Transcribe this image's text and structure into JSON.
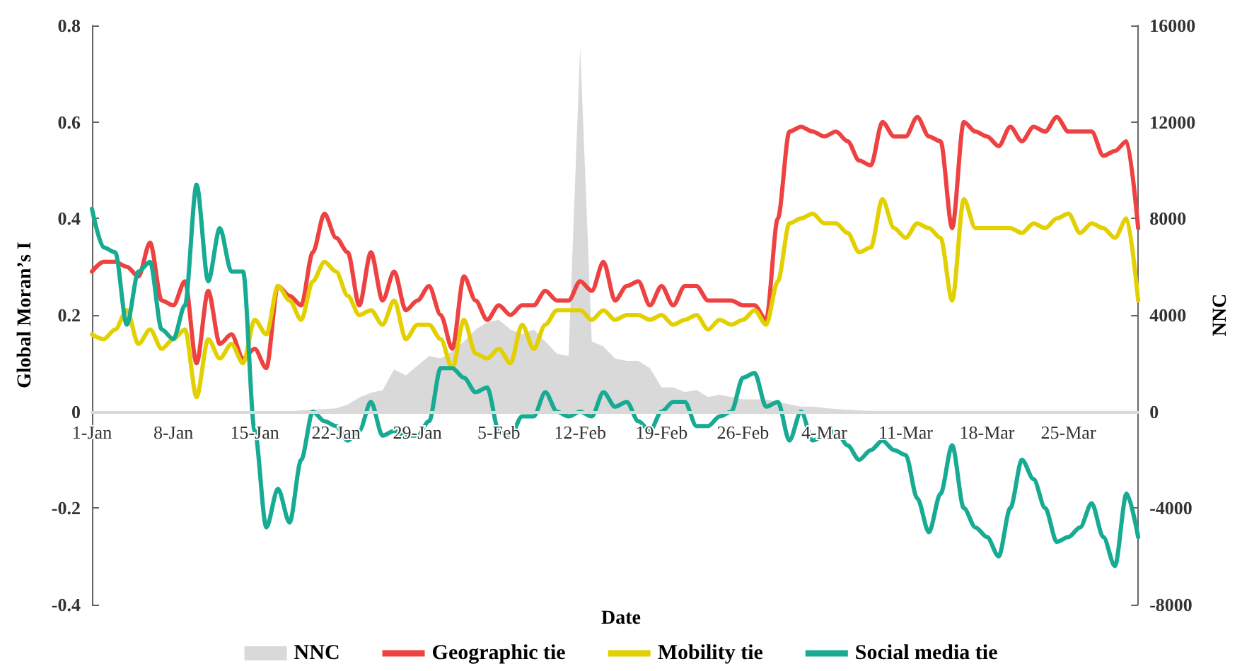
{
  "chart_data": {
    "type": "line",
    "xlabel": "Date",
    "ylabel": "Global Moran’s I",
    "y2label": "NNC",
    "x": [
      "--01-01",
      "--01-02",
      "--01-03",
      "--01-04",
      "--01-05",
      "--01-06",
      "--01-07",
      "--01-08",
      "--01-09",
      "--01-10",
      "--01-11",
      "--01-12",
      "--01-13",
      "--01-14",
      "--01-15",
      "--01-16",
      "--01-17",
      "--01-18",
      "--01-19",
      "--01-20",
      "--01-21",
      "--01-22",
      "--01-23",
      "--01-24",
      "--01-25",
      "--01-26",
      "--01-27",
      "--01-28",
      "--01-29",
      "--01-30",
      "--01-31",
      "--02-01",
      "--02-02",
      "--02-03",
      "--02-04",
      "--02-05",
      "--02-06",
      "--02-07",
      "--02-08",
      "--02-09",
      "--02-10",
      "--02-11",
      "--02-12",
      "--02-13",
      "--02-14",
      "--02-15",
      "--02-16",
      "--02-17",
      "--02-18",
      "--02-19",
      "--02-20",
      "--02-21",
      "--02-22",
      "--02-23",
      "--02-24",
      "--02-25",
      "--02-26",
      "--02-27",
      "--02-28",
      "--02-29",
      "--03-01",
      "--03-02",
      "--03-03",
      "--03-04",
      "--03-05",
      "--03-06",
      "--03-07",
      "--03-08",
      "--03-09",
      "--03-10",
      "--03-11",
      "--03-12",
      "--03-13",
      "--03-14",
      "--03-15",
      "--03-16",
      "--03-17",
      "--03-18",
      "--03-19",
      "--03-20",
      "--03-21",
      "--03-22",
      "--03-23",
      "--03-24",
      "--03-25",
      "--03-26",
      "--03-27",
      "--03-28",
      "--03-29",
      "--03-30",
      "--03-31"
    ],
    "series": [
      {
        "name": "NNC",
        "type": "area",
        "axis": "y2",
        "color": "#d9d9d9",
        "values": [
          0,
          0,
          0,
          0,
          0,
          0,
          0,
          0,
          0,
          0,
          0,
          0,
          0,
          0,
          0,
          0,
          0,
          0,
          50,
          80,
          100,
          130,
          290,
          580,
          780,
          880,
          1750,
          1500,
          1900,
          2300,
          2200,
          2500,
          2900,
          3400,
          3700,
          3800,
          3400,
          3200,
          3400,
          2900,
          2400,
          2300,
          15100,
          2900,
          2700,
          2200,
          2100,
          2100,
          1800,
          1000,
          1000,
          800,
          900,
          600,
          700,
          600,
          500,
          500,
          500,
          400,
          300,
          200,
          200,
          150,
          100,
          80,
          50,
          30,
          30,
          30,
          30,
          30,
          30,
          30,
          30,
          30,
          30,
          30,
          30,
          30,
          30,
          30,
          30,
          30,
          30,
          30,
          30,
          30,
          30,
          30,
          30
        ]
      },
      {
        "name": "Geographic tie",
        "color": "#ee4242",
        "values": [
          0.29,
          0.31,
          0.31,
          0.3,
          0.28,
          0.35,
          0.23,
          0.22,
          0.27,
          0.1,
          0.25,
          0.14,
          0.16,
          0.11,
          0.13,
          0.09,
          0.26,
          0.24,
          0.22,
          0.33,
          0.41,
          0.36,
          0.33,
          0.22,
          0.33,
          0.23,
          0.29,
          0.21,
          0.23,
          0.26,
          0.2,
          0.13,
          0.28,
          0.23,
          0.19,
          0.22,
          0.2,
          0.22,
          0.22,
          0.25,
          0.23,
          0.23,
          0.27,
          0.25,
          0.31,
          0.23,
          0.26,
          0.27,
          0.22,
          0.26,
          0.22,
          0.26,
          0.26,
          0.23,
          0.23,
          0.23,
          0.22,
          0.22,
          0.19,
          0.4,
          0.58,
          0.59,
          0.58,
          0.57,
          0.58,
          0.56,
          0.52,
          0.51,
          0.6,
          0.57,
          0.57,
          0.61,
          0.57,
          0.56,
          0.38,
          0.6,
          0.58,
          0.57,
          0.55,
          0.59,
          0.56,
          0.59,
          0.58,
          0.61,
          0.58,
          0.58,
          0.58,
          0.53,
          0.54,
          0.56,
          0.38
        ]
      },
      {
        "name": "Mobility tie",
        "color": "#e2d000",
        "values": [
          0.16,
          0.15,
          0.17,
          0.21,
          0.14,
          0.17,
          0.13,
          0.15,
          0.17,
          0.03,
          0.15,
          0.11,
          0.14,
          0.1,
          0.19,
          0.16,
          0.26,
          0.23,
          0.19,
          0.27,
          0.31,
          0.29,
          0.24,
          0.2,
          0.21,
          0.18,
          0.23,
          0.15,
          0.18,
          0.18,
          0.15,
          0.09,
          0.19,
          0.12,
          0.11,
          0.13,
          0.1,
          0.18,
          0.13,
          0.18,
          0.21,
          0.21,
          0.21,
          0.19,
          0.21,
          0.19,
          0.2,
          0.2,
          0.19,
          0.2,
          0.18,
          0.19,
          0.2,
          0.17,
          0.19,
          0.18,
          0.19,
          0.21,
          0.18,
          0.27,
          0.39,
          0.4,
          0.41,
          0.39,
          0.39,
          0.37,
          0.33,
          0.34,
          0.44,
          0.38,
          0.36,
          0.39,
          0.38,
          0.36,
          0.23,
          0.44,
          0.38,
          0.38,
          0.38,
          0.38,
          0.37,
          0.39,
          0.38,
          0.4,
          0.41,
          0.37,
          0.39,
          0.38,
          0.36,
          0.4,
          0.23
        ]
      },
      {
        "name": "Social media tie",
        "color": "#17ab93",
        "values": [
          0.42,
          0.34,
          0.33,
          0.18,
          0.29,
          0.31,
          0.17,
          0.15,
          0.22,
          0.47,
          0.27,
          0.38,
          0.29,
          0.29,
          -0.04,
          -0.24,
          -0.16,
          -0.23,
          -0.1,
          0,
          -0.02,
          -0.03,
          -0.06,
          -0.04,
          0.02,
          -0.05,
          -0.04,
          -0.05,
          -0.05,
          -0.02,
          0.09,
          0.09,
          0.07,
          0.04,
          0.05,
          -0.04,
          -0.05,
          -0.01,
          -0.01,
          0.04,
          0,
          -0.01,
          0,
          -0.01,
          0.04,
          0.01,
          0.02,
          -0.02,
          -0.04,
          0,
          0.02,
          0.02,
          -0.03,
          -0.03,
          -0.01,
          0,
          0.07,
          0.08,
          0.01,
          0.02,
          -0.06,
          0,
          -0.06,
          -0.05,
          -0.04,
          -0.07,
          -0.1,
          -0.08,
          -0.06,
          -0.08,
          -0.09,
          -0.18,
          -0.25,
          -0.17,
          -0.07,
          -0.2,
          -0.24,
          -0.26,
          -0.3,
          -0.2,
          -0.1,
          -0.14,
          -0.2,
          -0.27,
          -0.26,
          -0.24,
          -0.19,
          -0.26,
          -0.32,
          -0.17,
          -0.26
        ]
      }
    ],
    "xlim": [
      "--01-01",
      "--03-31"
    ],
    "xticks": [
      {
        "value": "--01-01",
        "label": "1-Jan"
      },
      {
        "value": "--01-08",
        "label": "8-Jan"
      },
      {
        "value": "--01-15",
        "label": "15-Jan"
      },
      {
        "value": "--01-22",
        "label": "22-Jan"
      },
      {
        "value": "--01-29",
        "label": "29-Jan"
      },
      {
        "value": "--02-05",
        "label": "5-Feb"
      },
      {
        "value": "--02-12",
        "label": "12-Feb"
      },
      {
        "value": "--02-19",
        "label": "19-Feb"
      },
      {
        "value": "--02-26",
        "label": "26-Feb"
      },
      {
        "value": "--03-04",
        "label": "4-Mar"
      },
      {
        "value": "--03-11",
        "label": "11-Mar"
      },
      {
        "value": "--03-18",
        "label": "18-Mar"
      },
      {
        "value": "--03-25",
        "label": "25-Mar"
      }
    ],
    "ylim": [
      -0.4,
      0.8
    ],
    "yticks": [
      -0.4,
      -0.2,
      0,
      0.2,
      0.4,
      0.6,
      0.8
    ],
    "y2lim": [
      -8000,
      16000
    ],
    "y2ticks": [
      -8000,
      -4000,
      0,
      4000,
      8000,
      12000,
      16000
    ],
    "grid": false,
    "legend": "bottom",
    "marker": "none",
    "line_style": "solid"
  }
}
